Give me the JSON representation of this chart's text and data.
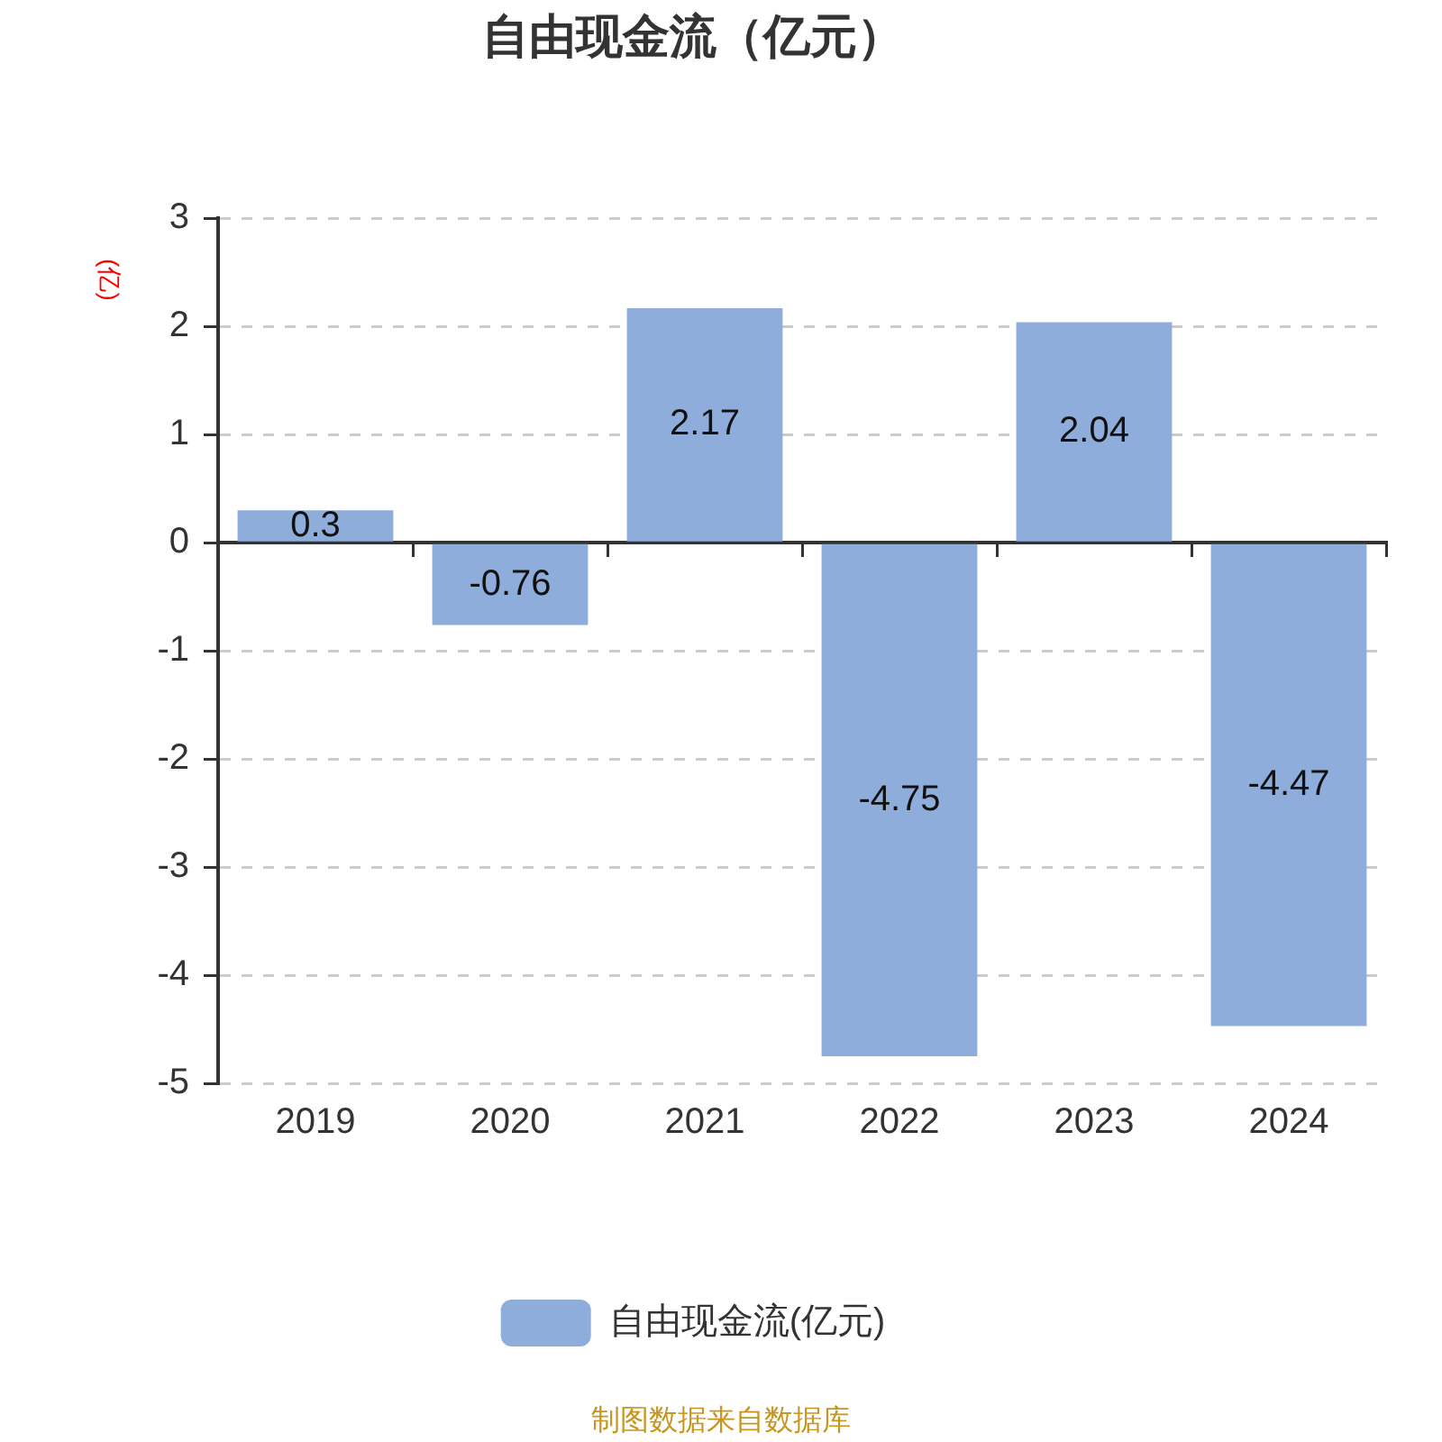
{
  "chart_data": {
    "type": "bar",
    "title": "自由现金流（亿元）",
    "ylabel": "(亿)",
    "categories": [
      "2019",
      "2020",
      "2021",
      "2022",
      "2023",
      "2024"
    ],
    "series": [
      {
        "name": "自由现金流(亿元)",
        "color": "#8eaddb",
        "values": [
          0.3,
          -0.76,
          2.17,
          -4.75,
          2.04,
          -4.47
        ]
      }
    ],
    "ylim": [
      -5,
      3
    ],
    "yticks": [
      -5,
      -4,
      -3,
      -2,
      -1,
      0,
      1,
      2,
      3
    ],
    "grid": "y",
    "legend": "bottom",
    "data_labels": true,
    "annotations": [
      "制图数据来自数据库"
    ]
  }
}
